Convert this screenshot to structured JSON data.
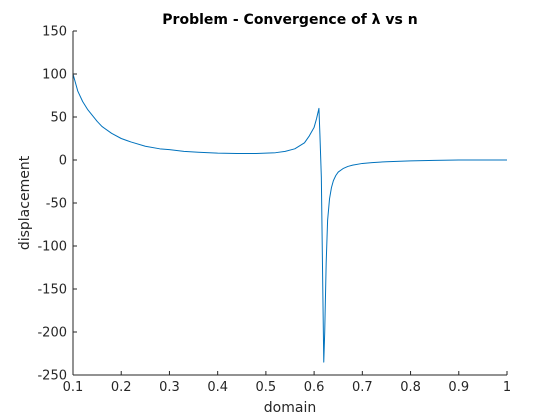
{
  "chart_data": {
    "type": "line",
    "title": "Problem - Convergence of λ vs n",
    "xlabel": "domain",
    "ylabel": "displacement",
    "xlim": [
      0.1,
      1
    ],
    "ylim": [
      -250,
      150
    ],
    "grid": false,
    "legend": "none",
    "x_ticks": [
      {
        "value": 0.1,
        "label": "0.1"
      },
      {
        "value": 0.2,
        "label": "0.2"
      },
      {
        "value": 0.3,
        "label": "0.3"
      },
      {
        "value": 0.4,
        "label": "0.4"
      },
      {
        "value": 0.5,
        "label": "0.5"
      },
      {
        "value": 0.6,
        "label": "0.6"
      },
      {
        "value": 0.7,
        "label": "0.7"
      },
      {
        "value": 0.8,
        "label": "0.8"
      },
      {
        "value": 0.9,
        "label": "0.9"
      },
      {
        "value": 1,
        "label": "1"
      }
    ],
    "y_ticks": [
      {
        "value": 150,
        "label": "150"
      },
      {
        "value": 100,
        "label": "100"
      },
      {
        "value": 50,
        "label": "50"
      },
      {
        "value": 0,
        "label": "0"
      },
      {
        "value": -50,
        "label": "-50"
      },
      {
        "value": -100,
        "label": "-100"
      },
      {
        "value": -150,
        "label": "-150"
      },
      {
        "value": -200,
        "label": "-200"
      },
      {
        "value": -250,
        "label": "-250"
      }
    ],
    "series": [
      {
        "color": "#0072bd",
        "x": [
          0.1,
          0.105,
          0.11,
          0.12,
          0.13,
          0.14,
          0.15,
          0.16,
          0.18,
          0.2,
          0.22,
          0.25,
          0.28,
          0.3,
          0.33,
          0.36,
          0.4,
          0.44,
          0.48,
          0.5,
          0.52,
          0.54,
          0.56,
          0.58,
          0.59,
          0.6,
          0.605,
          0.61,
          0.612,
          0.615,
          0.618,
          0.62,
          0.622,
          0.625,
          0.628,
          0.632,
          0.636,
          0.64,
          0.645,
          0.65,
          0.66,
          0.67,
          0.68,
          0.7,
          0.72,
          0.75,
          0.8,
          0.85,
          0.9,
          0.95,
          1
        ],
        "y": [
          100,
          90,
          80,
          68,
          59,
          52,
          45,
          39,
          31,
          25,
          21,
          16,
          13,
          12,
          10,
          9,
          8,
          7.5,
          7.5,
          8,
          8.5,
          10,
          13,
          20,
          28,
          38,
          48,
          60,
          30,
          -20,
          -150,
          -235,
          -200,
          -120,
          -70,
          -45,
          -32,
          -24,
          -18,
          -14,
          -10,
          -7.5,
          -6,
          -4,
          -3,
          -2,
          -1,
          -0.5,
          0,
          0,
          0
        ]
      }
    ]
  }
}
